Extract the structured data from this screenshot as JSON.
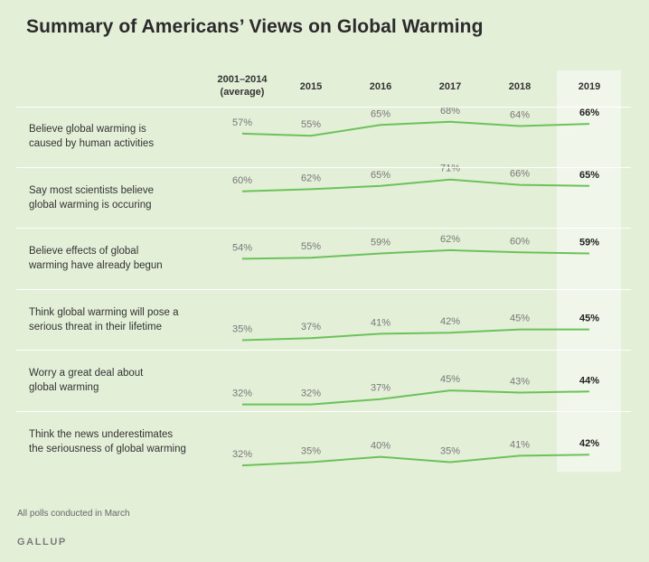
{
  "title": "Summary of Americans’ Views on Global Warming",
  "footnote": "All polls conducted in March",
  "brand": "GALLUP",
  "colors": {
    "line": "#6cc25a",
    "background": "#e4efd8",
    "highlight": "#f1f6ea"
  },
  "chart_data": {
    "type": "line",
    "title": "Summary of Americans’ Views on Global Warming",
    "categories": [
      "2001–2014 (average)",
      "2015",
      "2016",
      "2017",
      "2018",
      "2019"
    ],
    "category_lines": [
      [
        "2001–2014",
        "(average)"
      ],
      [
        "2015"
      ],
      [
        "2016"
      ],
      [
        "2017"
      ],
      [
        "2018"
      ],
      [
        "2019"
      ]
    ],
    "highlighted_category": "2019",
    "unit": "%",
    "series": [
      {
        "name": "Believe global warming is caused by human activities",
        "label_lines": [
          "Believe global warming is",
          "caused by human activities"
        ],
        "values": [
          57,
          55,
          65,
          68,
          64,
          66
        ]
      },
      {
        "name": "Say most scientists believe global warming is occuring",
        "label_lines": [
          "Say most scientists believe",
          "global warming is occuring"
        ],
        "values": [
          60,
          62,
          65,
          71,
          66,
          65
        ]
      },
      {
        "name": "Believe effects of global warming have already begun",
        "label_lines": [
          "Believe effects of global",
          "warming have already begun"
        ],
        "values": [
          54,
          55,
          59,
          62,
          60,
          59
        ]
      },
      {
        "name": "Think global warming will pose a serious threat in their lifetime",
        "label_lines": [
          "Think global warming will pose a",
          "serious threat in their lifetime"
        ],
        "values": [
          35,
          37,
          41,
          42,
          45,
          45
        ]
      },
      {
        "name": "Worry a great deal about global warming",
        "label_lines": [
          "Worry a great deal about",
          "global warming"
        ],
        "values": [
          32,
          32,
          37,
          45,
          43,
          44
        ]
      },
      {
        "name": "Think the news underestimates the seriousness of global warming",
        "label_lines": [
          "Think the news underestimates",
          "the seriousness of global warming"
        ],
        "values": [
          32,
          35,
          40,
          35,
          41,
          42
        ]
      }
    ]
  }
}
